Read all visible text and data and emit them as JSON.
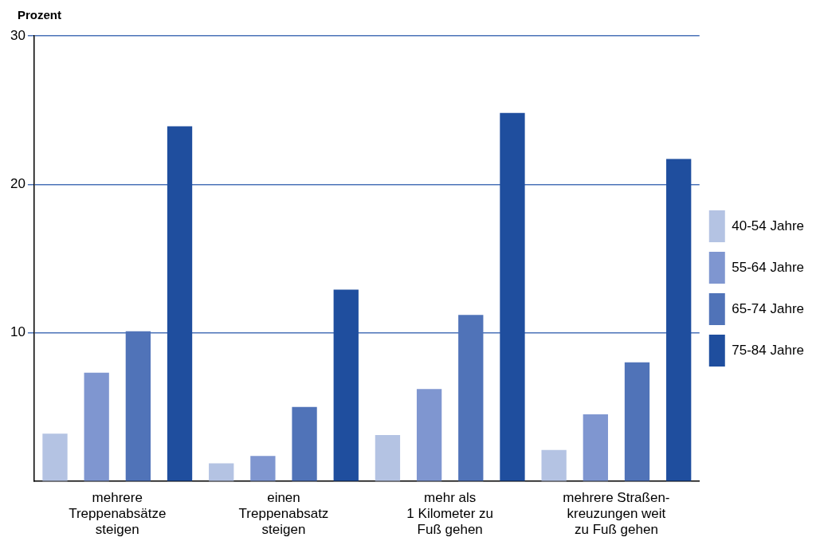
{
  "chart_data": {
    "type": "bar",
    "ylabel": "Prozent",
    "categories": [
      "mehrere\nTreppenabsätze\nsteigen",
      "einen\nTreppenabsatz\nsteigen",
      "mehr als\n1 Kilometer zu\nFuß gehen",
      "mehrere Straßen-\nkreuzungen weit\nzu Fuß gehen"
    ],
    "series": [
      {
        "name": "40-54 Jahre",
        "color": "#b4c3e3",
        "values": [
          3.2,
          1.2,
          3.1,
          2.1
        ]
      },
      {
        "name": "55-64 Jahre",
        "color": "#7f96d0",
        "values": [
          7.3,
          1.7,
          6.2,
          4.5
        ]
      },
      {
        "name": "65-74 Jahre",
        "color": "#5073b8",
        "values": [
          10.1,
          5.0,
          11.2,
          8.0
        ]
      },
      {
        "name": "75-84 Jahre",
        "color": "#1f4e9e",
        "values": [
          23.9,
          12.9,
          24.8,
          21.7
        ]
      }
    ],
    "ylim": [
      0,
      30
    ],
    "yticks": [
      10,
      20,
      30
    ],
    "grid": "y",
    "legend": "right"
  }
}
